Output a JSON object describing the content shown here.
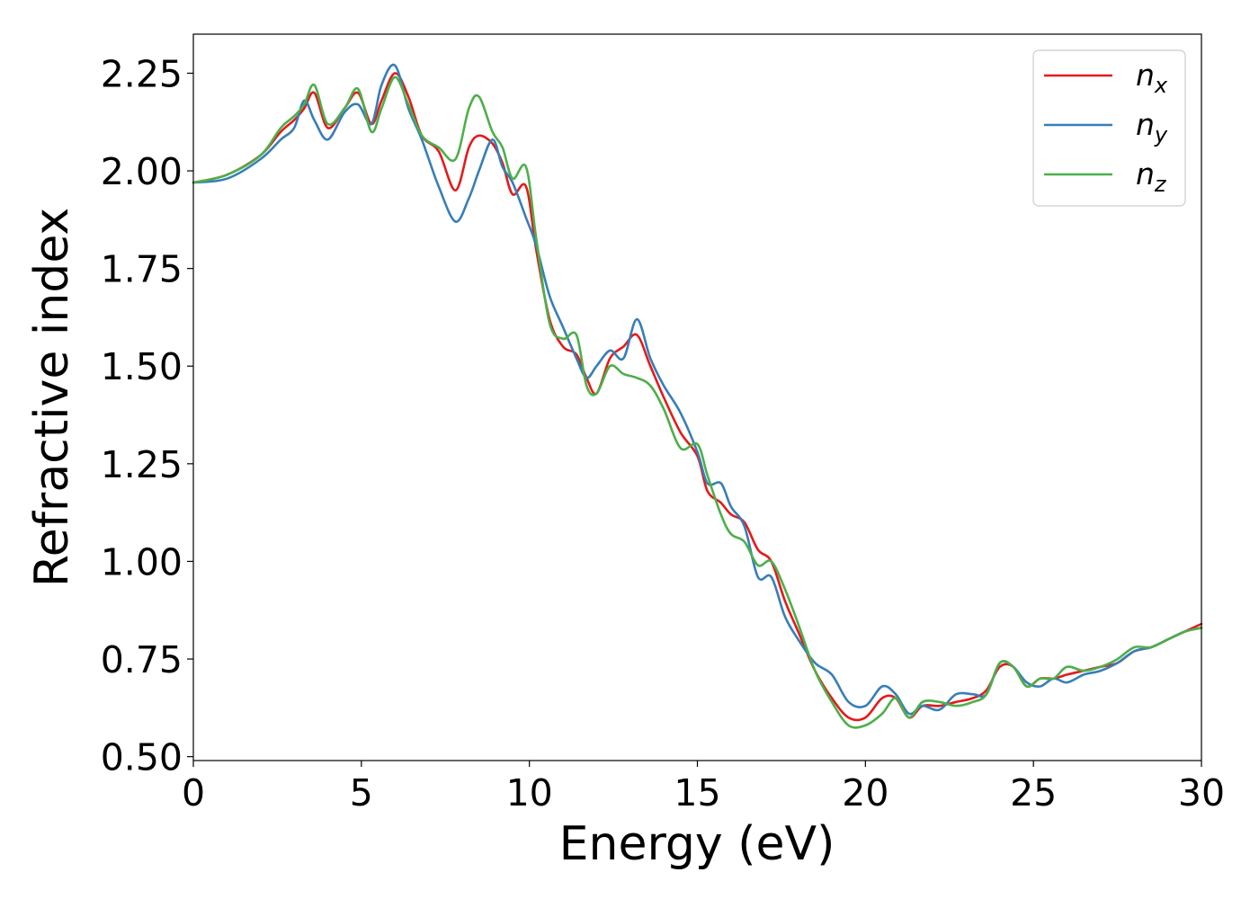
{
  "chart_data": {
    "type": "line",
    "title": "",
    "xlabel": "Energy (eV)",
    "ylabel": "Refractive index",
    "xlim": [
      0,
      30
    ],
    "ylim": [
      0.49,
      2.35
    ],
    "xticks": [
      0,
      5,
      10,
      15,
      20,
      25,
      30
    ],
    "xtick_labels": [
      "0",
      "5",
      "10",
      "15",
      "20",
      "25",
      "30"
    ],
    "yticks": [
      0.5,
      0.75,
      1.0,
      1.25,
      1.5,
      1.75,
      2.0,
      2.25
    ],
    "ytick_labels": [
      "0.50",
      "0.75",
      "1.00",
      "1.25",
      "1.50",
      "1.75",
      "2.00",
      "2.25"
    ],
    "grid": false,
    "legend_position": "top-right",
    "series": [
      {
        "name": "n_x",
        "legend_base": "n",
        "legend_sub": "x",
        "color": "#e41a1c",
        "x": [
          0,
          1,
          2,
          2.6,
          3.0,
          3.3,
          3.6,
          4.0,
          4.5,
          4.9,
          5.3,
          5.6,
          6.0,
          6.4,
          6.8,
          7.3,
          7.8,
          8.2,
          8.5,
          8.9,
          9.2,
          9.5,
          9.9,
          10.2,
          10.6,
          11.0,
          11.4,
          11.7,
          12.0,
          12.4,
          12.8,
          13.2,
          13.6,
          14.0,
          14.5,
          15.0,
          15.3,
          15.7,
          16.0,
          16.4,
          16.8,
          17.2,
          17.6,
          18.0,
          18.5,
          19.0,
          19.5,
          20.0,
          20.5,
          20.9,
          21.3,
          21.7,
          22.2,
          22.7,
          23.2,
          23.6,
          24.0,
          24.4,
          24.8,
          25.2,
          25.6,
          26.0,
          26.5,
          27.0,
          27.5,
          28.0,
          28.5,
          29.0,
          29.5,
          30.0
        ],
        "y": [
          1.97,
          1.99,
          2.04,
          2.1,
          2.13,
          2.16,
          2.2,
          2.11,
          2.16,
          2.2,
          2.12,
          2.18,
          2.25,
          2.19,
          2.09,
          2.05,
          1.95,
          2.06,
          2.09,
          2.07,
          2.02,
          1.94,
          1.96,
          1.8,
          1.62,
          1.55,
          1.53,
          1.47,
          1.43,
          1.52,
          1.55,
          1.58,
          1.5,
          1.42,
          1.33,
          1.27,
          1.18,
          1.15,
          1.12,
          1.1,
          1.03,
          1.0,
          0.9,
          0.82,
          0.72,
          0.65,
          0.6,
          0.6,
          0.65,
          0.65,
          0.6,
          0.63,
          0.63,
          0.64,
          0.65,
          0.67,
          0.73,
          0.73,
          0.68,
          0.7,
          0.7,
          0.71,
          0.72,
          0.73,
          0.74,
          0.77,
          0.78,
          0.8,
          0.82,
          0.84
        ]
      },
      {
        "name": "n_y",
        "legend_base": "n",
        "legend_sub": "y",
        "color": "#377eb8",
        "x": [
          0,
          1,
          2,
          2.6,
          3.0,
          3.3,
          3.6,
          4.0,
          4.5,
          4.9,
          5.3,
          5.6,
          6.0,
          6.4,
          6.8,
          7.3,
          7.8,
          8.2,
          8.5,
          8.9,
          9.2,
          9.5,
          9.9,
          10.2,
          10.6,
          11.0,
          11.4,
          11.7,
          12.0,
          12.4,
          12.8,
          13.2,
          13.6,
          14.0,
          14.5,
          15.0,
          15.3,
          15.7,
          16.0,
          16.4,
          16.8,
          17.2,
          17.6,
          18.0,
          18.5,
          19.0,
          19.5,
          20.0,
          20.5,
          20.9,
          21.3,
          21.7,
          22.2,
          22.7,
          23.2,
          23.6,
          24.0,
          24.4,
          24.8,
          25.2,
          25.6,
          26.0,
          26.5,
          27.0,
          27.5,
          28.0,
          28.5,
          29.0,
          29.5,
          30.0
        ],
        "y": [
          1.97,
          1.98,
          2.03,
          2.08,
          2.11,
          2.18,
          2.13,
          2.08,
          2.15,
          2.17,
          2.12,
          2.22,
          2.27,
          2.16,
          2.08,
          1.96,
          1.87,
          1.93,
          2.0,
          2.08,
          2.01,
          1.97,
          1.88,
          1.81,
          1.68,
          1.6,
          1.52,
          1.47,
          1.5,
          1.54,
          1.52,
          1.62,
          1.52,
          1.45,
          1.38,
          1.28,
          1.2,
          1.2,
          1.14,
          1.09,
          0.96,
          0.96,
          0.86,
          0.8,
          0.74,
          0.71,
          0.64,
          0.63,
          0.68,
          0.66,
          0.61,
          0.63,
          0.62,
          0.66,
          0.66,
          0.66,
          0.74,
          0.73,
          0.69,
          0.68,
          0.7,
          0.69,
          0.71,
          0.72,
          0.74,
          0.77,
          0.78,
          0.8,
          0.82,
          0.83
        ]
      },
      {
        "name": "n_z",
        "legend_base": "n",
        "legend_sub": "z",
        "color": "#4daf4a",
        "x": [
          0,
          1,
          2,
          2.6,
          3.0,
          3.3,
          3.6,
          4.0,
          4.5,
          4.9,
          5.3,
          5.6,
          6.0,
          6.4,
          6.8,
          7.3,
          7.8,
          8.2,
          8.5,
          8.9,
          9.2,
          9.5,
          9.9,
          10.2,
          10.6,
          11.0,
          11.4,
          11.7,
          12.0,
          12.4,
          12.8,
          13.2,
          13.6,
          14.0,
          14.5,
          15.0,
          15.3,
          15.7,
          16.0,
          16.4,
          16.8,
          17.2,
          17.6,
          18.0,
          18.5,
          19.0,
          19.5,
          20.0,
          20.5,
          20.9,
          21.3,
          21.7,
          22.2,
          22.7,
          23.2,
          23.6,
          24.0,
          24.4,
          24.8,
          25.2,
          25.6,
          26.0,
          26.5,
          27.0,
          27.5,
          28.0,
          28.5,
          29.0,
          29.5,
          30.0
        ],
        "y": [
          1.97,
          1.99,
          2.04,
          2.11,
          2.14,
          2.17,
          2.22,
          2.12,
          2.16,
          2.21,
          2.1,
          2.16,
          2.24,
          2.17,
          2.09,
          2.06,
          2.03,
          2.16,
          2.19,
          2.1,
          2.06,
          1.98,
          2.01,
          1.83,
          1.61,
          1.57,
          1.58,
          1.45,
          1.43,
          1.5,
          1.48,
          1.47,
          1.45,
          1.39,
          1.29,
          1.3,
          1.22,
          1.12,
          1.07,
          1.05,
          0.99,
          1.0,
          0.93,
          0.84,
          0.72,
          0.64,
          0.58,
          0.58,
          0.61,
          0.65,
          0.6,
          0.64,
          0.64,
          0.63,
          0.64,
          0.66,
          0.74,
          0.73,
          0.68,
          0.7,
          0.7,
          0.73,
          0.72,
          0.73,
          0.75,
          0.78,
          0.78,
          0.8,
          0.82,
          0.83
        ]
      }
    ]
  }
}
